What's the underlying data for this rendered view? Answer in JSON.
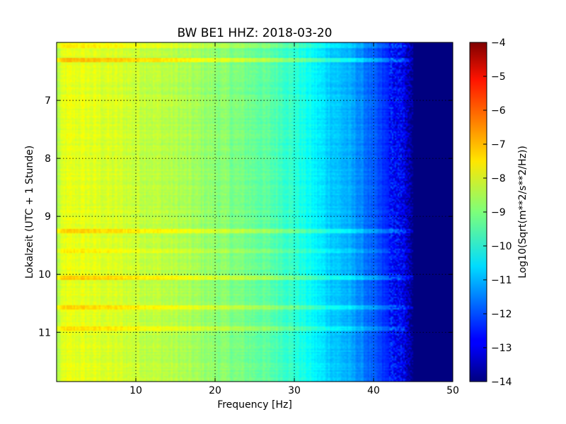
{
  "chart_data": {
    "type": "heatmap",
    "title": "BW BE1 HHZ: 2018-03-20",
    "xlabel": "Frequency [Hz]",
    "ylabel": "Lokalzeit (UTC + 1 Stunde)",
    "colorbar_label": "Log10(Sqrt(m**2/s**2/Hz))",
    "colormap": "jet",
    "xlim": [
      0,
      50
    ],
    "ylim": [
      6.0,
      11.85
    ],
    "y_inverted": true,
    "clim": [
      -14,
      -4
    ],
    "grid": true,
    "x_ticks": [
      10,
      20,
      30,
      40,
      50
    ],
    "x_tick_labels": [
      "10",
      "20",
      "30",
      "40",
      "50"
    ],
    "y_ticks": [
      7,
      8,
      9,
      10,
      11
    ],
    "y_tick_labels": [
      "7",
      "8",
      "9",
      "10",
      "11"
    ],
    "colorbar_ticks": [
      -4,
      -5,
      -6,
      -7,
      -8,
      -9,
      -10,
      -11,
      -12,
      -13,
      -14
    ],
    "colorbar_tick_labels": [
      "−4",
      "−5",
      "−6",
      "−7",
      "−8",
      "−9",
      "−10",
      "−11",
      "−12",
      "−13",
      "−14"
    ],
    "frequency_profile": {
      "x": [
        0,
        1,
        3,
        6,
        10,
        15,
        20,
        25,
        28,
        30,
        32,
        34,
        36,
        38,
        40,
        42,
        44,
        45,
        50
      ],
      "values": [
        -8.6,
        -8.0,
        -8.0,
        -8.1,
        -8.25,
        -8.5,
        -8.85,
        -9.2,
        -9.5,
        -9.8,
        -10.2,
        -10.6,
        -10.9,
        -11.3,
        -11.9,
        -12.5,
        -13.0,
        -14.0,
        -14.0
      ]
    },
    "bright_bands": [
      {
        "time": 6.07,
        "delta": 0.4,
        "fmax": 45
      },
      {
        "time": 6.3,
        "delta": 0.8,
        "fmax": 45
      },
      {
        "time": 9.25,
        "delta": 0.7,
        "fmax": 45
      },
      {
        "time": 9.6,
        "delta": 0.35,
        "fmax": 45
      },
      {
        "time": 10.05,
        "delta": 0.75,
        "fmax": 45
      },
      {
        "time": 10.57,
        "delta": 0.6,
        "fmax": 45
      },
      {
        "time": 10.93,
        "delta": 0.5,
        "fmax": 44
      }
    ]
  }
}
